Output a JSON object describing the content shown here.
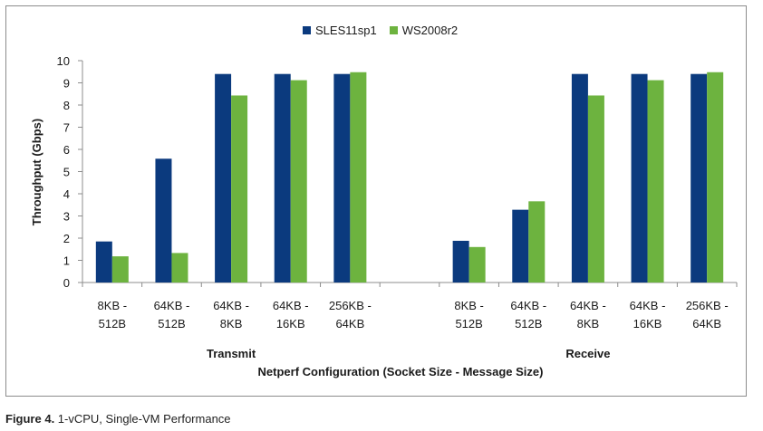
{
  "chart_data": {
    "type": "bar",
    "ylabel": "Throughput (Gbps)",
    "xlabel": "Netperf Configuration (Socket Size - Message Size)",
    "ylim": [
      0,
      10
    ],
    "yticks": [
      0,
      1,
      2,
      3,
      4,
      5,
      6,
      7,
      8,
      9,
      10
    ],
    "legend_position": "top",
    "grid": false,
    "groups": [
      {
        "name": "Transmit",
        "categories": [
          [
            "8KB -",
            "512B"
          ],
          [
            "64KB -",
            "512B"
          ],
          [
            "64KB -",
            "8KB"
          ],
          [
            "64KB -",
            "16KB"
          ],
          [
            "256KB -",
            "64KB"
          ]
        ]
      },
      {
        "name": "Receive",
        "categories": [
          [
            "8KB -",
            "512B"
          ],
          [
            "64KB -",
            "512B"
          ],
          [
            "64KB -",
            "8KB"
          ],
          [
            "64KB -",
            "16KB"
          ],
          [
            "256KB -",
            "64KB"
          ]
        ]
      }
    ],
    "series": [
      {
        "name": "SLES11sp1",
        "color": "#0b3a7e",
        "values": [
          1.85,
          5.58,
          9.4,
          9.4,
          9.4,
          1.88,
          3.28,
          9.4,
          9.4,
          9.4
        ]
      },
      {
        "name": "WS2008r2",
        "color": "#6db33f",
        "values": [
          1.18,
          1.33,
          8.43,
          9.12,
          9.48,
          1.6,
          3.66,
          8.43,
          9.12,
          9.48
        ]
      }
    ]
  },
  "caption": {
    "label": "Figure 4.",
    "text": " 1-vCPU, Single-VM Performance"
  }
}
